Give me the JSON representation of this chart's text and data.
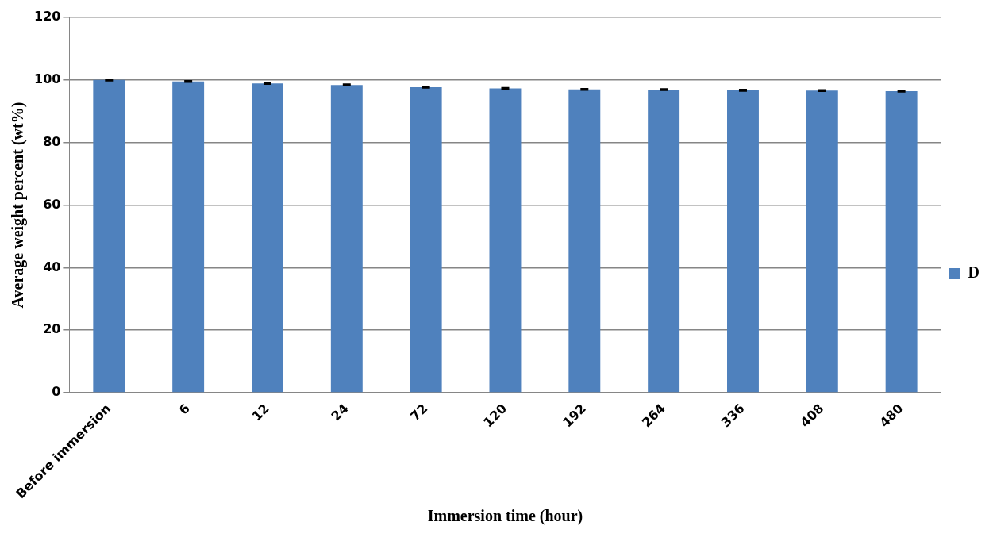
{
  "chart_data": {
    "type": "bar",
    "xlabel": "Immersion time (hour)",
    "ylabel": "Average weight percent (wt%)",
    "categories": [
      "Before immersion",
      "6",
      "12",
      "24",
      "72",
      "120",
      "192",
      "264",
      "336",
      "408",
      "480"
    ],
    "series": [
      {
        "name": "D",
        "color": "#4f81bd",
        "values": [
          100,
          99.5,
          98.9,
          98.4,
          97.7,
          97.3,
          97.0,
          96.9,
          96.7,
          96.6,
          96.4
        ],
        "errors": [
          0.2,
          0.2,
          0.2,
          0.2,
          0.2,
          0.2,
          0.2,
          0.2,
          0.2,
          0.2,
          0.2
        ]
      }
    ],
    "ylim": [
      0,
      120
    ],
    "yticks": [
      0,
      20,
      40,
      60,
      80,
      100,
      120
    ],
    "grid": "y",
    "legend": "right"
  }
}
